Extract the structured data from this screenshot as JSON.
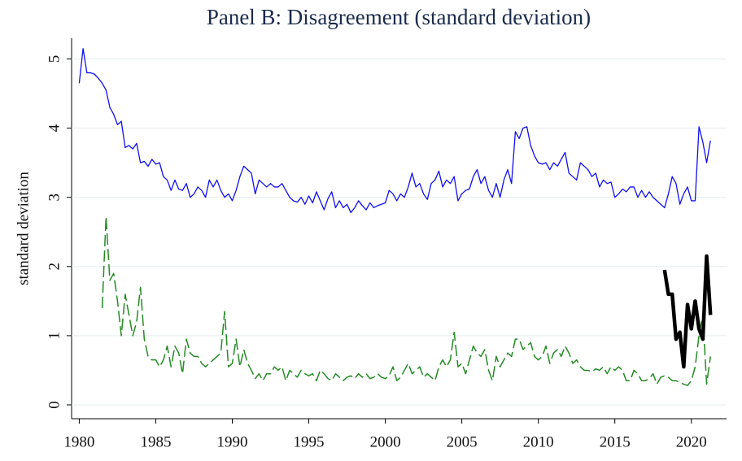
{
  "chart_data": {
    "type": "line",
    "title": "Panel B: Disagreement (standard deviation)",
    "ylabel": "standard deviation",
    "xlim": [
      1979.5,
      2022.3
    ],
    "ylim": [
      -0.2,
      5.3
    ],
    "xticks": [
      1980,
      1985,
      1990,
      1995,
      2000,
      2005,
      2010,
      2015,
      2020
    ],
    "yticks": [
      0,
      1,
      2,
      3,
      4,
      5
    ],
    "grid": true,
    "x": [
      1980,
      1980.25,
      1980.5,
      1980.75,
      1981,
      1981.25,
      1981.5,
      1981.75,
      1982,
      1982.25,
      1982.5,
      1982.75,
      1983,
      1983.25,
      1983.5,
      1983.75,
      1984,
      1984.25,
      1984.5,
      1984.75,
      1985,
      1985.25,
      1985.5,
      1985.75,
      1986,
      1986.25,
      1986.5,
      1986.75,
      1987,
      1987.25,
      1987.5,
      1987.75,
      1988,
      1988.25,
      1988.5,
      1988.75,
      1989,
      1989.25,
      1989.5,
      1989.75,
      1990,
      1990.25,
      1990.5,
      1990.75,
      1991,
      1991.25,
      1991.5,
      1991.75,
      1992,
      1992.25,
      1992.5,
      1992.75,
      1993,
      1993.25,
      1993.5,
      1993.75,
      1994,
      1994.25,
      1994.5,
      1994.75,
      1995,
      1995.25,
      1995.5,
      1995.75,
      1996,
      1996.25,
      1996.5,
      1996.75,
      1997,
      1997.25,
      1997.5,
      1997.75,
      1998,
      1998.25,
      1998.5,
      1998.75,
      1999,
      1999.25,
      1999.5,
      1999.75,
      2000,
      2000.25,
      2000.5,
      2000.75,
      2001,
      2001.25,
      2001.5,
      2001.75,
      2002,
      2002.25,
      2002.5,
      2002.75,
      2003,
      2003.25,
      2003.5,
      2003.75,
      2004,
      2004.25,
      2004.5,
      2004.75,
      2005,
      2005.25,
      2005.5,
      2005.75,
      2006,
      2006.25,
      2006.5,
      2006.75,
      2007,
      2007.25,
      2007.5,
      2007.75,
      2008,
      2008.25,
      2008.5,
      2008.75,
      2009,
      2009.25,
      2009.5,
      2009.75,
      2010,
      2010.25,
      2010.5,
      2010.75,
      2011,
      2011.25,
      2011.5,
      2011.75,
      2012,
      2012.25,
      2012.5,
      2012.75,
      2013,
      2013.25,
      2013.5,
      2013.75,
      2014,
      2014.25,
      2014.5,
      2014.75,
      2015,
      2015.25,
      2015.5,
      2015.75,
      2016,
      2016.25,
      2016.5,
      2016.75,
      2017,
      2017.25,
      2017.5,
      2017.75,
      2018,
      2018.25,
      2018.5,
      2018.75,
      2019,
      2019.25,
      2019.5,
      2019.75,
      2020,
      2020.25,
      2020.5,
      2020.75,
      2021,
      2021.25
    ],
    "series": [
      {
        "color": "#1010ee",
        "style": "solid",
        "width": 1.3,
        "values": [
          4.65,
          5.15,
          4.8,
          4.8,
          4.78,
          4.72,
          4.65,
          4.55,
          4.3,
          4.2,
          4.05,
          4.1,
          3.72,
          3.75,
          3.7,
          3.78,
          3.5,
          3.52,
          3.45,
          3.55,
          3.48,
          3.5,
          3.3,
          3.25,
          3.1,
          3.25,
          3.12,
          3.1,
          3.2,
          3.0,
          3.05,
          3.15,
          3.1,
          3.0,
          3.25,
          3.15,
          3.25,
          3.1,
          3.0,
          3.05,
          2.95,
          3.1,
          3.3,
          3.45,
          3.4,
          3.35,
          3.05,
          3.25,
          3.2,
          3.15,
          3.2,
          3.15,
          3.15,
          3.2,
          3.1,
          3.0,
          2.95,
          2.93,
          3.0,
          2.9,
          3.02,
          2.92,
          3.08,
          2.95,
          2.82,
          2.98,
          3.08,
          2.85,
          2.95,
          2.85,
          2.9,
          2.78,
          2.85,
          2.95,
          2.88,
          2.82,
          2.92,
          2.85,
          2.88,
          2.9,
          2.92,
          3.1,
          3.05,
          2.95,
          3.05,
          3.0,
          3.15,
          3.35,
          3.15,
          3.2,
          3.05,
          2.97,
          3.2,
          3.25,
          3.38,
          3.15,
          3.25,
          3.2,
          3.3,
          2.95,
          3.05,
          3.1,
          3.12,
          3.3,
          3.4,
          3.2,
          3.3,
          3.1,
          3.0,
          3.2,
          3.0,
          3.25,
          3.4,
          3.2,
          3.95,
          3.85,
          4.0,
          4.02,
          3.75,
          3.6,
          3.5,
          3.48,
          3.5,
          3.4,
          3.5,
          3.45,
          3.55,
          3.65,
          3.35,
          3.3,
          3.25,
          3.5,
          3.45,
          3.4,
          3.3,
          3.35,
          3.15,
          3.25,
          3.2,
          3.22,
          3.0,
          3.05,
          3.12,
          3.08,
          3.15,
          3.15,
          3.0,
          3.1,
          3.0,
          3.08,
          3.0,
          2.95,
          2.9,
          2.85,
          3.05,
          3.3,
          3.2,
          2.9,
          3.05,
          3.15,
          2.95,
          2.95,
          4.02,
          3.8,
          3.5,
          3.82
        ]
      },
      {
        "color": "#228b22",
        "style": "dashed",
        "width": 1.5,
        "values": [
          null,
          null,
          null,
          null,
          null,
          null,
          1.4,
          2.72,
          1.8,
          1.9,
          1.5,
          1.0,
          1.6,
          1.3,
          1.0,
          1.2,
          1.7,
          0.95,
          0.7,
          0.65,
          0.65,
          0.55,
          0.65,
          0.85,
          0.55,
          0.85,
          0.75,
          0.45,
          0.95,
          0.75,
          0.7,
          0.7,
          0.6,
          0.55,
          0.6,
          0.65,
          0.7,
          0.75,
          1.35,
          0.55,
          0.6,
          0.95,
          0.55,
          0.8,
          0.6,
          0.5,
          0.38,
          0.45,
          0.35,
          0.45,
          0.45,
          0.55,
          0.5,
          0.55,
          0.35,
          0.5,
          0.45,
          0.4,
          0.5,
          0.45,
          0.42,
          0.45,
          0.35,
          0.5,
          0.45,
          0.38,
          0.35,
          0.45,
          0.4,
          0.35,
          0.4,
          0.42,
          0.38,
          0.45,
          0.4,
          0.45,
          0.38,
          0.4,
          0.45,
          0.4,
          0.38,
          0.42,
          0.55,
          0.35,
          0.4,
          0.5,
          0.6,
          0.45,
          0.5,
          0.55,
          0.4,
          0.45,
          0.4,
          0.35,
          0.55,
          0.65,
          0.55,
          0.65,
          1.05,
          0.55,
          0.6,
          0.45,
          0.65,
          0.85,
          0.75,
          0.7,
          0.8,
          0.5,
          0.35,
          0.7,
          0.55,
          0.65,
          0.75,
          0.7,
          0.95,
          0.95,
          0.8,
          0.85,
          0.9,
          0.7,
          0.65,
          0.7,
          0.85,
          0.6,
          0.75,
          0.8,
          0.7,
          0.85,
          0.75,
          0.6,
          0.65,
          0.55,
          0.5,
          0.5,
          0.48,
          0.52,
          0.5,
          0.55,
          0.45,
          0.55,
          0.5,
          0.55,
          0.5,
          0.35,
          0.35,
          0.5,
          0.45,
          0.35,
          0.35,
          0.38,
          0.45,
          0.3,
          0.4,
          0.42,
          0.4,
          0.35,
          0.35,
          0.32,
          0.3,
          0.28,
          0.35,
          0.55,
          1.0,
          1.3,
          0.3,
          0.7
        ]
      },
      {
        "color": "#000000",
        "style": "solid",
        "width": 4.5,
        "values": [
          null,
          null,
          null,
          null,
          null,
          null,
          null,
          null,
          null,
          null,
          null,
          null,
          null,
          null,
          null,
          null,
          null,
          null,
          null,
          null,
          null,
          null,
          null,
          null,
          null,
          null,
          null,
          null,
          null,
          null,
          null,
          null,
          null,
          null,
          null,
          null,
          null,
          null,
          null,
          null,
          null,
          null,
          null,
          null,
          null,
          null,
          null,
          null,
          null,
          null,
          null,
          null,
          null,
          null,
          null,
          null,
          null,
          null,
          null,
          null,
          null,
          null,
          null,
          null,
          null,
          null,
          null,
          null,
          null,
          null,
          null,
          null,
          null,
          null,
          null,
          null,
          null,
          null,
          null,
          null,
          null,
          null,
          null,
          null,
          null,
          null,
          null,
          null,
          null,
          null,
          null,
          null,
          null,
          null,
          null,
          null,
          null,
          null,
          null,
          null,
          null,
          null,
          null,
          null,
          null,
          null,
          null,
          null,
          null,
          null,
          null,
          null,
          null,
          null,
          null,
          null,
          null,
          null,
          null,
          null,
          null,
          null,
          null,
          null,
          null,
          null,
          null,
          null,
          null,
          null,
          null,
          null,
          null,
          null,
          null,
          null,
          null,
          null,
          null,
          null,
          null,
          null,
          null,
          null,
          null,
          null,
          null,
          null,
          null,
          null,
          null,
          null,
          null,
          1.95,
          1.6,
          1.6,
          0.95,
          1.05,
          0.55,
          1.45,
          1.1,
          1.5,
          1.1,
          0.95,
          2.15,
          1.3
        ]
      }
    ]
  }
}
